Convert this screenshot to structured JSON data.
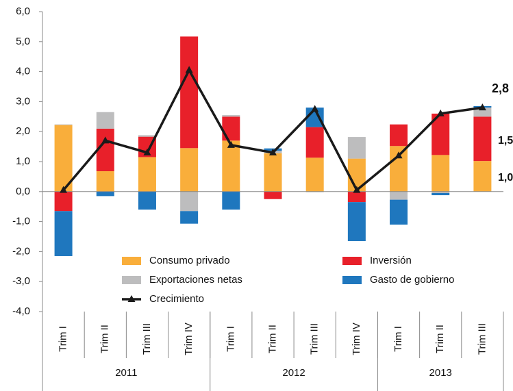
{
  "chart_data": {
    "type": "bar",
    "stacked": true,
    "categories": [
      "Trim I",
      "Trim II",
      "Trim III",
      "Trim IV",
      "Trim I",
      "Trim II",
      "Trim III",
      "Trim IV",
      "Trim I",
      "Trim II",
      "Trim III"
    ],
    "x_groups": [
      "2011",
      "2012",
      "2013"
    ],
    "x_group_sizes": [
      4,
      4,
      3
    ],
    "series": [
      {
        "name": "Consumo privado",
        "color": "#F9AE3B",
        "values": [
          2.22,
          0.68,
          1.15,
          1.45,
          1.7,
          1.28,
          1.13,
          1.1,
          1.52,
          1.22,
          1.02
        ]
      },
      {
        "name": "Inversión",
        "color": "#E8202A",
        "values": [
          -0.65,
          1.42,
          0.68,
          3.72,
          0.8,
          -0.25,
          1.02,
          -0.35,
          0.72,
          1.38,
          1.48
        ]
      },
      {
        "name": "Exportaciones netas",
        "color": "#BDBDBE",
        "values": [
          0.02,
          0.55,
          0.05,
          -0.65,
          0.05,
          0.08,
          -0.02,
          0.72,
          -0.27,
          -0.05,
          0.3
        ]
      },
      {
        "name": "Gasto de gobierno",
        "color": "#1F77BE",
        "values": [
          -1.5,
          -0.15,
          -0.6,
          -0.42,
          -0.6,
          0.08,
          0.65,
          -1.3,
          -0.83,
          -0.07,
          0.05
        ]
      },
      {
        "name": "Crecimiento",
        "type": "line",
        "color": "#1a1a1a",
        "values": [
          0.05,
          1.7,
          1.3,
          4.05,
          1.55,
          1.3,
          2.75,
          0.05,
          1.2,
          2.6,
          2.8
        ]
      }
    ],
    "ylim": [
      -4,
      6
    ],
    "yticks": [
      {
        "value": -4,
        "label": "-4,0"
      },
      {
        "value": -3,
        "label": "-3,0"
      },
      {
        "value": -2,
        "label": "-2,0"
      },
      {
        "value": -1,
        "label": "-1,0"
      },
      {
        "value": 0,
        "label": "0,0"
      },
      {
        "value": 1,
        "label": "1,0"
      },
      {
        "value": 2,
        "label": "2,0"
      },
      {
        "value": 3,
        "label": "3,0"
      },
      {
        "value": 4,
        "label": "4,0"
      },
      {
        "value": 5,
        "label": "5,0"
      },
      {
        "value": 6,
        "label": "6,0"
      }
    ],
    "annotations": [
      {
        "text": "2,8",
        "color": "#1a1a1a"
      },
      {
        "text": "1,5",
        "color": "#E8202A"
      },
      {
        "text": "1,0",
        "color": "#F9AE3B"
      }
    ]
  }
}
